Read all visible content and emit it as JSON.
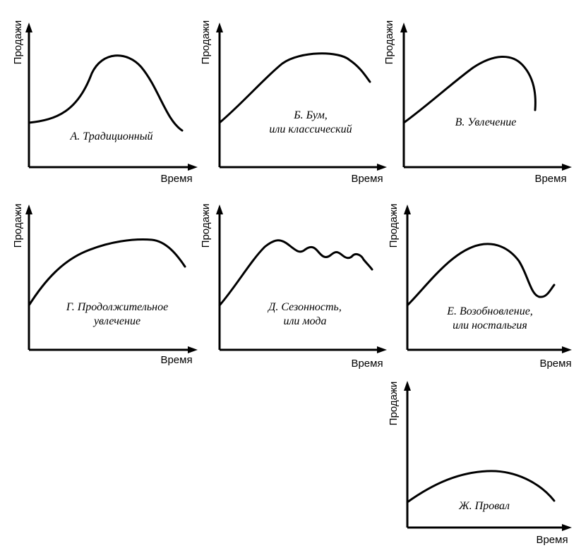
{
  "axis_labels": {
    "y": "Продажи",
    "x": "Время"
  },
  "panels": [
    {
      "id": "a",
      "label_lines": [
        "А.  Традиционный"
      ]
    },
    {
      "id": "b",
      "label_lines": [
        "Б. Бум,",
        "или классический"
      ]
    },
    {
      "id": "v",
      "label_lines": [
        "В.  Увлечение"
      ]
    },
    {
      "id": "g",
      "label_lines": [
        "Г.  Продолжительное",
        "увлечение"
      ]
    },
    {
      "id": "d",
      "label_lines": [
        "Д.  Сезонность,",
        "или мода"
      ]
    },
    {
      "id": "e",
      "label_lines": [
        "Е.  Возобновление,",
        "или ностальгия"
      ]
    },
    {
      "id": "zh",
      "label_lines": [
        "Ж.  Провал"
      ]
    }
  ]
}
